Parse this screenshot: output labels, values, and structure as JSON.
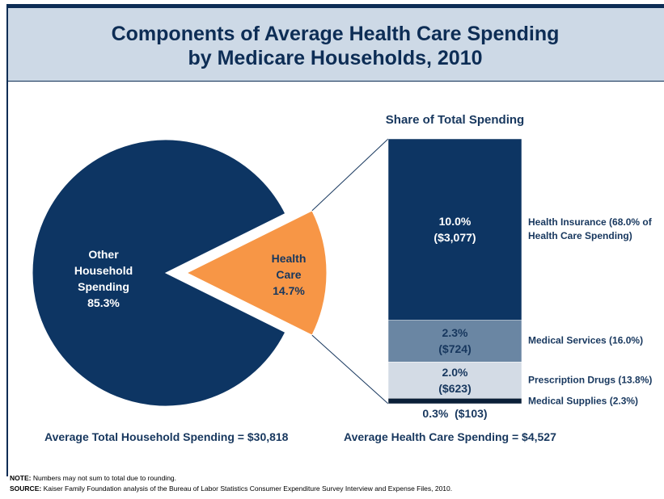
{
  "header": {
    "title": [
      "Components of Average Health Care Spending",
      "by Medicare Households, 2010"
    ]
  },
  "chart_data": [
    {
      "type": "pie",
      "categories": [
        "Other Household Spending",
        "Health Care"
      ],
      "values": [
        85.3,
        14.7
      ],
      "value_labels": [
        "85.3%",
        "14.7%"
      ],
      "colors": [
        "#0d3563",
        "#f79646"
      ],
      "exploded": "Health Care",
      "caption": "Average Total Household Spending = $30,818"
    },
    {
      "type": "stacked_bar",
      "title": "Share of Total Spending",
      "series": [
        {
          "name": "Health Insurance (68.0% of Health Care Spending)",
          "color": "#0d3563",
          "values": [
            10.0
          ],
          "value_labels": [
            "10.0%"
          ],
          "amounts": [
            3077
          ],
          "amount_labels": [
            "($3,077)"
          ]
        },
        {
          "name": "Medical Services (16.0%)",
          "color": "#6a86a3",
          "values": [
            2.3
          ],
          "value_labels": [
            "2.3%"
          ],
          "amounts": [
            724
          ],
          "amount_labels": [
            "($724)"
          ]
        },
        {
          "name": "Prescription Drugs (13.8%)",
          "color": "#d3dbe5",
          "values": [
            2.0
          ],
          "value_labels": [
            "2.0%"
          ],
          "amounts": [
            623
          ],
          "amount_labels": [
            "($623)"
          ]
        },
        {
          "name": "Medical Supplies (2.3%)",
          "color": "#0a1f38",
          "values": [
            0.3
          ],
          "value_labels": [
            "0.3%"
          ],
          "amounts": [
            103
          ],
          "amount_labels": [
            "($103)"
          ]
        }
      ],
      "caption": "Average Health Care Spending = $4,527"
    }
  ],
  "note": {
    "label": "NOTE:",
    "text": "Numbers may not sum to total due to rounding."
  },
  "source": {
    "label": "SOURCE:",
    "text": "Kaiser Family Foundation analysis of the Bureau of Labor Statistics Consumer Expenditure Survey Interview and Expense Files, 2010."
  }
}
